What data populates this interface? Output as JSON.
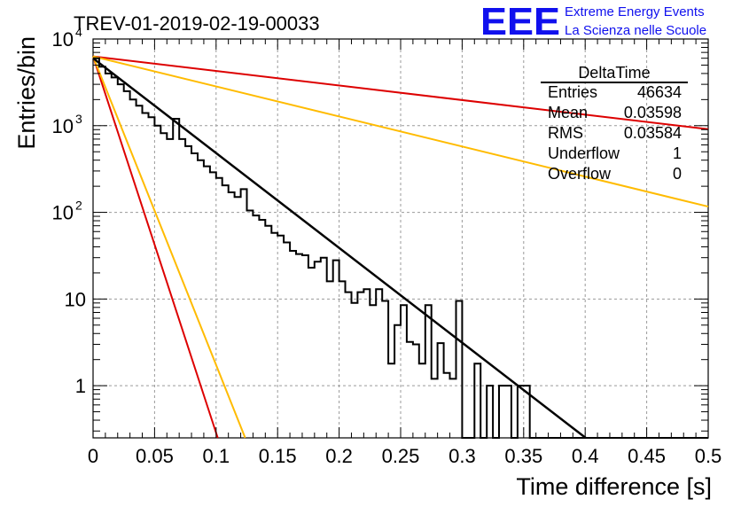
{
  "chart_data": {
    "type": "histogram",
    "title": "TREV-01-2019-02-19-00033",
    "xlabel": "Time difference [s]",
    "ylabel": "Entries/bin",
    "xlim": [
      0,
      0.5
    ],
    "ylim": [
      0.25,
      10000
    ],
    "y_scale": "log",
    "grid": true,
    "x_ticks": [
      "0",
      "0.05",
      "0.1",
      "0.15",
      "0.2",
      "0.25",
      "0.3",
      "0.35",
      "0.4",
      "0.45",
      "0.5"
    ],
    "x_tick_values": [
      0,
      0.05,
      0.1,
      0.15,
      0.2,
      0.25,
      0.3,
      0.35,
      0.4,
      0.45,
      0.5
    ],
    "y_ticks": [
      {
        "base": "10",
        "exp": "4",
        "value": 10000
      },
      {
        "base": "10",
        "exp": "3",
        "value": 1000
      },
      {
        "base": "10",
        "exp": "2",
        "value": 100
      },
      {
        "base": "10",
        "exp": "",
        "value": 10
      },
      {
        "base": "1",
        "exp": "",
        "value": 1
      }
    ],
    "histogram": {
      "name": "DeltaTime",
      "bin_width": 0.005,
      "counts": [
        6000,
        4800,
        4000,
        3600,
        3000,
        2500,
        2000,
        1700,
        1400,
        1250,
        1000,
        820,
        700,
        1200,
        700,
        580,
        480,
        400,
        340,
        290,
        250,
        205,
        170,
        150,
        185,
        105,
        92,
        82,
        70,
        58,
        54,
        45,
        36,
        33,
        32,
        23,
        27,
        30,
        16,
        28,
        16,
        12,
        9,
        12,
        13,
        8.5,
        13,
        9.5,
        1.8,
        5,
        8.5,
        3.2,
        3,
        1.8,
        8.5,
        1.2,
        3.1,
        1.4,
        1.2,
        9.5,
        0,
        0,
        1.8,
        0,
        1,
        0,
        1,
        1,
        0,
        1,
        1,
        0,
        0,
        0,
        0,
        0,
        0,
        0,
        0,
        0,
        0,
        0,
        0,
        0,
        0,
        0,
        0,
        0,
        0,
        0,
        0,
        0,
        0,
        0,
        0,
        0,
        0,
        0,
        0,
        0
      ]
    },
    "fit": {
      "name": "fit",
      "color": "#000000",
      "y0": 6000,
      "tau": 0.0397
    },
    "reference_lines": [
      {
        "color": "#dd0000",
        "y0": 6300,
        "tau": 0.01
      },
      {
        "color": "#ffbb00",
        "y0": 6300,
        "tau": 0.0122
      },
      {
        "color": "#dd0000",
        "y0": 6300,
        "tau": 0.2585
      },
      {
        "color": "#ffbb00",
        "y0": 6300,
        "tau": 0.1253
      }
    ],
    "stats": {
      "title": "DeltaTime",
      "rows": [
        {
          "label": "Entries",
          "value": "46634"
        },
        {
          "label": "Mean",
          "value": "0.03598"
        },
        {
          "label": "RMS",
          "value": "0.03584"
        },
        {
          "label": "Underflow",
          "value": "1"
        },
        {
          "label": "Overflow",
          "value": "0"
        }
      ]
    }
  },
  "logo": {
    "mark": "EEE",
    "line1": "Extreme Energy Events",
    "line2": "La Scienza nelle Scuole",
    "color": "#1010ee"
  }
}
